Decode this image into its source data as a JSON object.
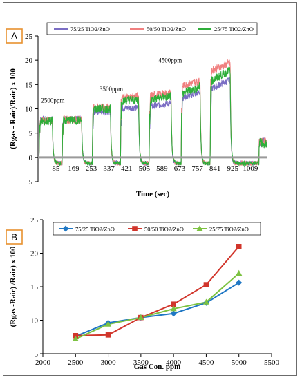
{
  "panels": {
    "a_label": "A",
    "b_label": "B",
    "accent": "#e8912f"
  },
  "chart_data": [
    {
      "type": "line",
      "panel": "A",
      "title": "",
      "xlabel": "Time (sec)",
      "ylabel": "(Rgas - Rair)/Rair) x 100",
      "ylim": [
        -5,
        25
      ],
      "yticks": [
        -5,
        0,
        5,
        10,
        15,
        20,
        25
      ],
      "xlim": [
        0,
        1090
      ],
      "xticks": [
        85,
        169,
        253,
        337,
        421,
        505,
        589,
        673,
        757,
        841,
        925,
        1009
      ],
      "grid": false,
      "legend_position": "top",
      "baseline": 0,
      "pulse_windows": [
        {
          "on": 5,
          "off": 68
        },
        {
          "on": 115,
          "off": 207
        },
        {
          "on": 258,
          "off": 344
        },
        {
          "on": 392,
          "off": 478
        },
        {
          "on": 528,
          "off": 632
        },
        {
          "on": 680,
          "off": 770
        },
        {
          "on": 818,
          "off": 913
        }
      ],
      "annotations": [
        {
          "text": "2500ppm",
          "x": 70,
          "y": 11.3
        },
        {
          "text": "3500ppm",
          "x": 348,
          "y": 13.6
        },
        {
          "text": "4500ppm",
          "x": 628,
          "y": 19.5
        }
      ],
      "series": [
        {
          "name": "75/25 TiO2/ZnO",
          "color": "#7b6ec4",
          "plateaus": [
            7.8,
            7.9,
            9.4,
            10.2,
            10.8,
            12.8,
            15.0
          ],
          "rise": [
            0,
            0,
            0,
            0,
            0.8,
            1.2,
            2.0
          ]
        },
        {
          "name": "50/50 TiO2/ZnO",
          "color": "#f08080",
          "plateaus": [
            7.6,
            7.8,
            10.3,
            12.4,
            13.0,
            15.2,
            18.6
          ],
          "rise": [
            0,
            0,
            0,
            0.4,
            0.6,
            1.0,
            1.6
          ]
        },
        {
          "name": "25/75 TiO2/ZnO",
          "color": "#2eae3a",
          "plateaus": [
            7.4,
            7.6,
            10.0,
            11.8,
            12.2,
            13.8,
            16.8
          ],
          "rise": [
            0,
            0,
            0,
            0.3,
            0.8,
            1.4,
            2.4
          ]
        }
      ]
    },
    {
      "type": "line",
      "panel": "B",
      "title": "",
      "xlabel": "Gas Con. ppm",
      "ylabel": "(Rgas -Rair) /Rair) x 100",
      "xlim": [
        2000,
        5500
      ],
      "xticks": [
        2000,
        2500,
        3000,
        3500,
        4000,
        4500,
        5000,
        5500
      ],
      "ylim": [
        5,
        25
      ],
      "yticks": [
        5,
        10,
        15,
        20,
        25
      ],
      "grid": false,
      "legend_position": "top",
      "x": [
        2500,
        3000,
        3500,
        4000,
        4500,
        5000
      ],
      "series": [
        {
          "name": "75/25 TiO2/ZnO",
          "color": "#1f77c4",
          "marker": "diamond",
          "values": [
            7.6,
            9.6,
            10.4,
            11.0,
            12.6,
            15.6
          ]
        },
        {
          "name": "50/50 TiO2/ZnO",
          "color": "#d1352b",
          "marker": "square",
          "values": [
            7.7,
            7.8,
            10.4,
            12.4,
            15.3,
            21.0
          ]
        },
        {
          "name": "25/75 TiO2/ZnO",
          "color": "#7cc241",
          "marker": "triangle",
          "values": [
            7.2,
            9.4,
            10.4,
            11.7,
            12.7,
            17.0
          ]
        }
      ]
    }
  ]
}
